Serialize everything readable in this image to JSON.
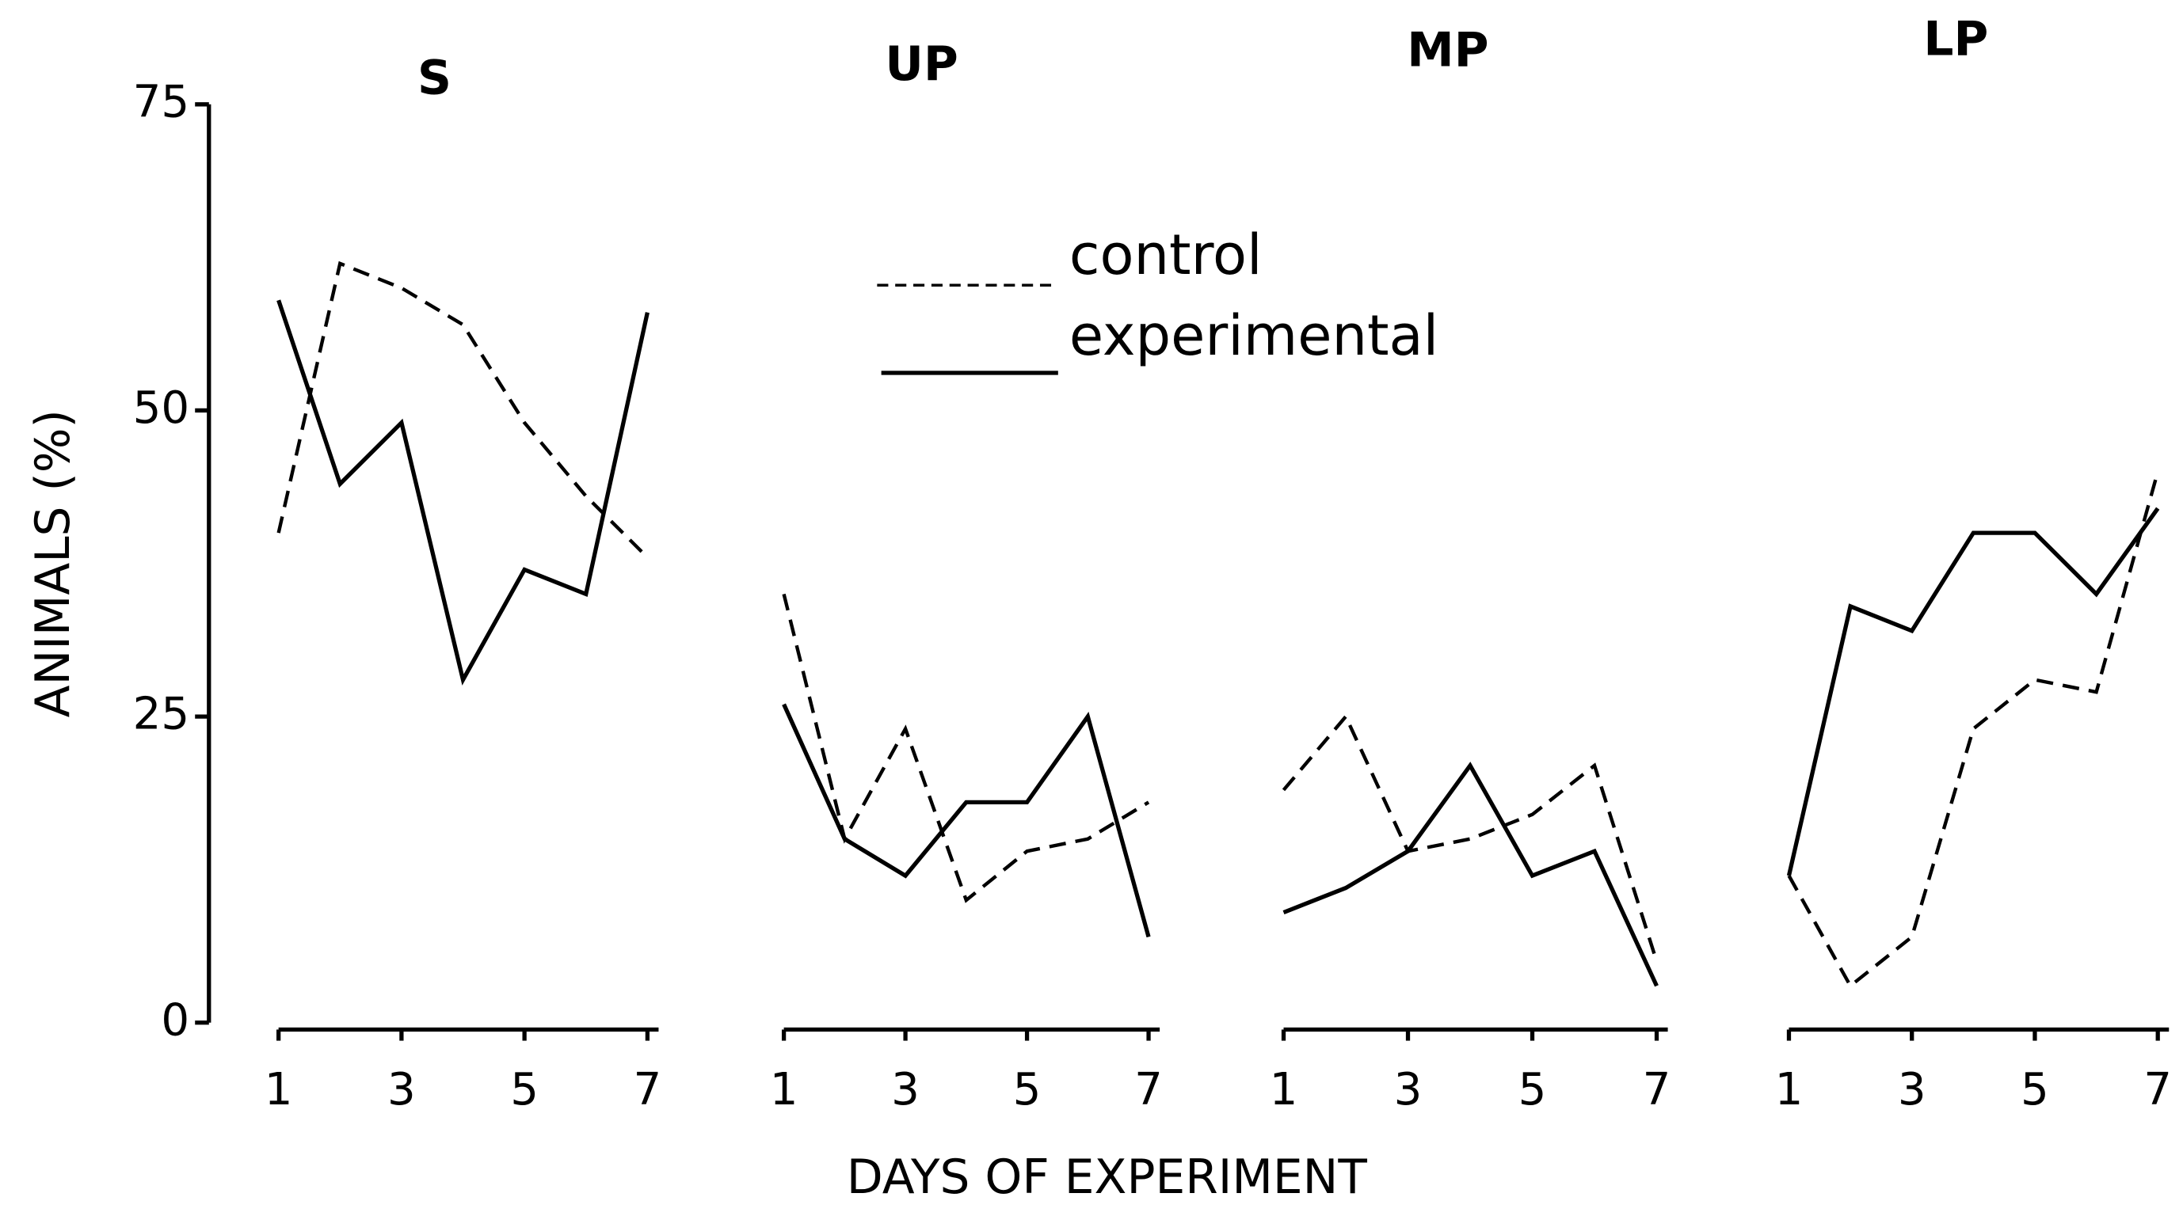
{
  "chart_data": [
    {
      "type": "line",
      "title": "S",
      "ylabel": "ANIMALS (%)",
      "xlabel": "DAYS OF EXPERIMENT",
      "x": [
        1,
        2,
        3,
        4,
        5,
        6,
        7
      ],
      "xlim": [
        1,
        7
      ],
      "xticks": [
        1,
        3,
        5,
        7
      ],
      "ylim": [
        0,
        75
      ],
      "yticks": [
        0,
        25,
        50,
        75
      ],
      "grid": false,
      "series": [
        {
          "name": "control",
          "color": "#000000",
          "dash": true,
          "values": [
            40,
            62,
            60,
            57,
            49,
            43,
            38
          ]
        },
        {
          "name": "experimental",
          "color": "#000000",
          "dash": false,
          "values": [
            59,
            44,
            49,
            28,
            37,
            35,
            58
          ]
        }
      ]
    },
    {
      "type": "line",
      "title": "UP",
      "x": [
        1,
        2,
        3,
        4,
        5,
        6,
        7
      ],
      "xlim": [
        1,
        7
      ],
      "xticks": [
        1,
        3,
        5,
        7
      ],
      "ylim": [
        0,
        75
      ],
      "grid": false,
      "series": [
        {
          "color": "#000000",
          "dash": true,
          "values": [
            35,
            15,
            24,
            10,
            14,
            15,
            18
          ]
        },
        {
          "color": "#000000",
          "dash": false,
          "values": [
            26,
            15,
            12,
            18,
            18,
            25,
            7
          ]
        }
      ]
    },
    {
      "type": "line",
      "title": "MP",
      "x": [
        1,
        2,
        3,
        4,
        5,
        6,
        7
      ],
      "xlim": [
        1,
        7
      ],
      "xticks": [
        1,
        3,
        5,
        7
      ],
      "ylim": [
        0,
        75
      ],
      "grid": false,
      "series": [
        {
          "color": "#000000",
          "dash": true,
          "values": [
            19,
            25,
            14,
            15,
            17,
            21,
            5
          ]
        },
        {
          "color": "#000000",
          "dash": false,
          "values": [
            9,
            11,
            14,
            21,
            12,
            14,
            3
          ]
        }
      ]
    },
    {
      "type": "line",
      "title": "LP",
      "x": [
        1,
        2,
        3,
        4,
        5,
        6,
        7
      ],
      "xlim": [
        1,
        7
      ],
      "xticks": [
        1,
        3,
        5,
        7
      ],
      "ylim": [
        0,
        75
      ],
      "grid": false,
      "series": [
        {
          "color": "#000000",
          "dash": true,
          "values": [
            12,
            3,
            7,
            24,
            28,
            27,
            45
          ]
        },
        {
          "color": "#000000",
          "dash": false,
          "values": [
            12,
            34,
            32,
            40,
            40,
            35,
            42
          ]
        }
      ]
    }
  ]
}
